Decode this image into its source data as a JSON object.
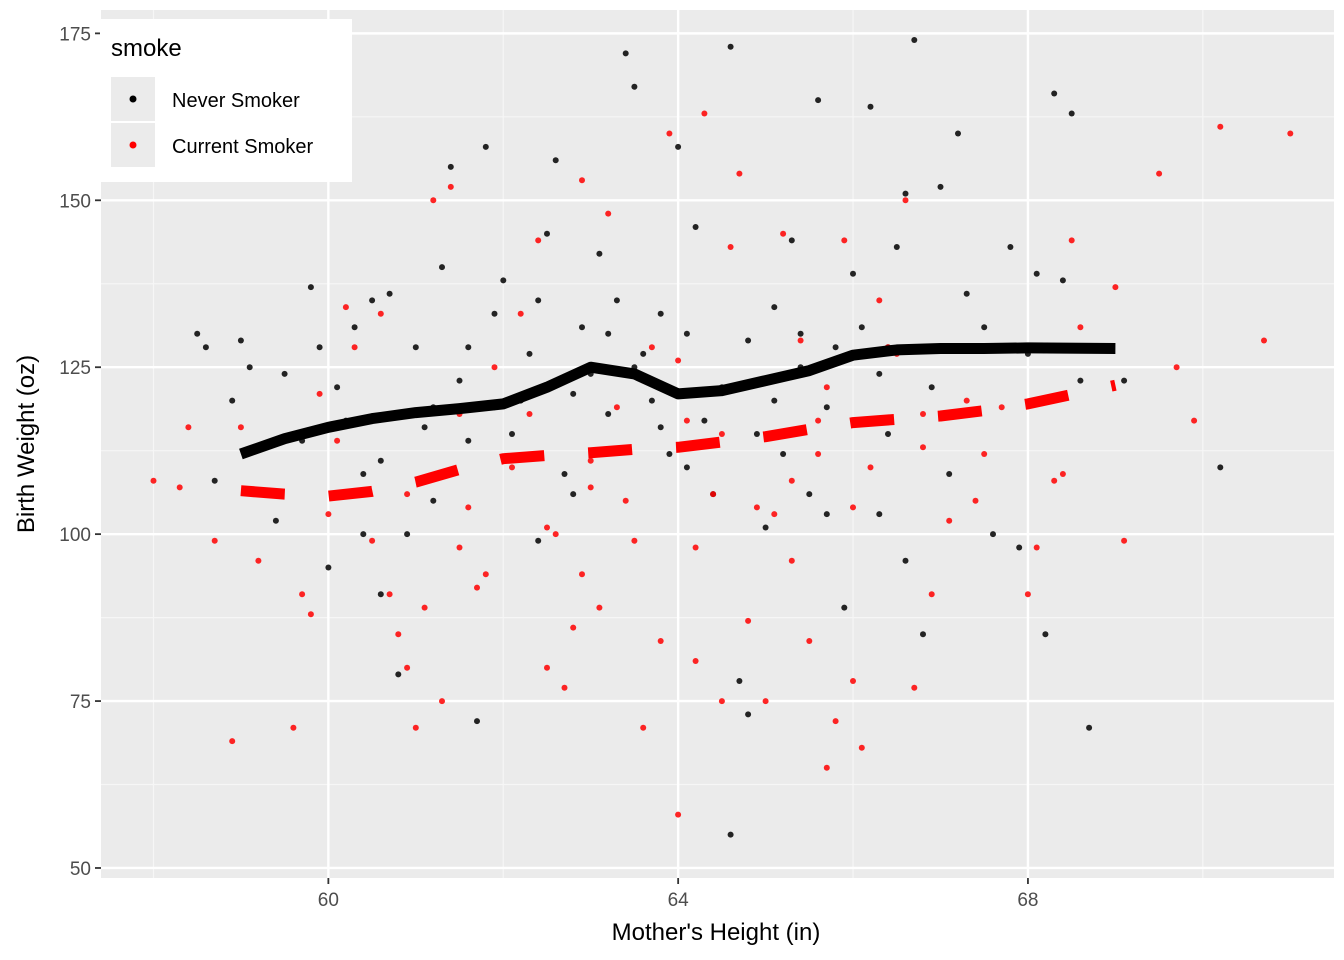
{
  "chart_data": {
    "type": "scatter",
    "xlabel": "Mother's Height (in)",
    "ylabel": "Birth Weight (oz)",
    "xlim": [
      57.4,
      71.5
    ],
    "ylim": [
      48.5,
      178.5
    ],
    "x_ticks": [
      60,
      64,
      68
    ],
    "y_ticks": [
      50,
      75,
      100,
      125,
      150,
      175
    ],
    "grid": true,
    "legend": {
      "title": "smoke",
      "placement": "top-left",
      "entries": [
        {
          "label": "Never Smoker",
          "color": "#000000"
        },
        {
          "label": "Current Smoker",
          "color": "#ff0000"
        }
      ]
    },
    "series": [
      {
        "name": "Never Smoker",
        "color": "#000000",
        "points": [
          [
            58.5,
            130
          ],
          [
            58.6,
            128
          ],
          [
            58.9,
            120
          ],
          [
            59.0,
            129
          ],
          [
            59.1,
            125
          ],
          [
            59.3,
            113
          ],
          [
            59.5,
            124
          ],
          [
            59.7,
            114
          ],
          [
            59.8,
            137
          ],
          [
            59.9,
            128
          ],
          [
            60.0,
            95
          ],
          [
            60.1,
            122
          ],
          [
            60.2,
            117
          ],
          [
            60.3,
            131
          ],
          [
            60.4,
            109
          ],
          [
            60.5,
            135
          ],
          [
            60.6,
            111
          ],
          [
            60.7,
            136
          ],
          [
            60.8,
            79
          ],
          [
            60.9,
            100
          ],
          [
            61.0,
            128
          ],
          [
            61.1,
            116
          ],
          [
            61.2,
            105
          ],
          [
            61.3,
            140
          ],
          [
            61.4,
            155
          ],
          [
            61.5,
            123
          ],
          [
            61.6,
            114
          ],
          [
            61.7,
            72
          ],
          [
            61.8,
            158
          ],
          [
            61.9,
            133
          ],
          [
            62.0,
            138
          ],
          [
            62.1,
            115
          ],
          [
            62.2,
            120
          ],
          [
            62.3,
            127
          ],
          [
            62.4,
            99
          ],
          [
            62.5,
            145
          ],
          [
            62.6,
            156
          ],
          [
            62.7,
            109
          ],
          [
            62.8,
            106
          ],
          [
            62.9,
            131
          ],
          [
            63.0,
            124
          ],
          [
            63.1,
            142
          ],
          [
            63.2,
            118
          ],
          [
            63.3,
            135
          ],
          [
            63.4,
            172
          ],
          [
            63.5,
            167
          ],
          [
            63.6,
            127
          ],
          [
            63.7,
            120
          ],
          [
            63.8,
            133
          ],
          [
            63.9,
            112
          ],
          [
            64.0,
            158
          ],
          [
            64.1,
            130
          ],
          [
            64.2,
            146
          ],
          [
            64.3,
            117
          ],
          [
            64.4,
            106
          ],
          [
            64.5,
            122
          ],
          [
            64.6,
            173
          ],
          [
            64.7,
            78
          ],
          [
            64.8,
            129
          ],
          [
            64.9,
            115
          ],
          [
            65.0,
            101
          ],
          [
            65.1,
            134
          ],
          [
            65.2,
            112
          ],
          [
            65.3,
            144
          ],
          [
            65.4,
            130
          ],
          [
            65.5,
            106
          ],
          [
            65.6,
            165
          ],
          [
            65.7,
            119
          ],
          [
            65.8,
            128
          ],
          [
            65.9,
            89
          ],
          [
            66.0,
            139
          ],
          [
            66.1,
            131
          ],
          [
            66.2,
            164
          ],
          [
            66.3,
            124
          ],
          [
            66.4,
            115
          ],
          [
            66.5,
            143
          ],
          [
            66.6,
            151
          ],
          [
            66.7,
            174
          ],
          [
            66.8,
            85
          ],
          [
            66.9,
            122
          ],
          [
            67.0,
            152
          ],
          [
            67.1,
            109
          ],
          [
            67.2,
            160
          ],
          [
            67.3,
            136
          ],
          [
            67.5,
            131
          ],
          [
            67.8,
            143
          ],
          [
            68.0,
            127
          ],
          [
            68.1,
            139
          ],
          [
            68.2,
            85
          ],
          [
            68.3,
            166
          ],
          [
            68.5,
            163
          ],
          [
            68.6,
            123
          ],
          [
            68.7,
            71
          ],
          [
            69.1,
            123
          ],
          [
            70.2,
            110
          ],
          [
            58.7,
            108
          ],
          [
            59.4,
            102
          ],
          [
            60.6,
            91
          ],
          [
            61.9,
            119
          ],
          [
            63.5,
            125
          ],
          [
            64.6,
            55
          ],
          [
            65.4,
            125
          ],
          [
            66.3,
            103
          ],
          [
            67.6,
            100
          ],
          [
            60.4,
            100
          ],
          [
            61.2,
            119
          ],
          [
            62.4,
            135
          ],
          [
            63.2,
            130
          ],
          [
            64.1,
            110
          ],
          [
            65.1,
            120
          ],
          [
            66.4,
            128
          ],
          [
            67.9,
            98
          ],
          [
            59.6,
            115
          ],
          [
            61.6,
            128
          ],
          [
            62.8,
            121
          ],
          [
            63.8,
            116
          ],
          [
            64.8,
            73
          ],
          [
            65.7,
            103
          ],
          [
            66.6,
            96
          ],
          [
            68.4,
            138
          ]
        ]
      },
      {
        "name": "Current Smoker",
        "color": "#ff0000",
        "points": [
          [
            58.0,
            108
          ],
          [
            58.3,
            107
          ],
          [
            58.4,
            116
          ],
          [
            58.7,
            99
          ],
          [
            58.9,
            69
          ],
          [
            59.0,
            116
          ],
          [
            59.2,
            96
          ],
          [
            59.6,
            71
          ],
          [
            59.7,
            91
          ],
          [
            59.8,
            88
          ],
          [
            60.0,
            103
          ],
          [
            60.2,
            134
          ],
          [
            60.3,
            128
          ],
          [
            60.5,
            99
          ],
          [
            60.6,
            133
          ],
          [
            60.7,
            91
          ],
          [
            60.8,
            85
          ],
          [
            60.9,
            80
          ],
          [
            61.0,
            71
          ],
          [
            61.1,
            89
          ],
          [
            61.2,
            150
          ],
          [
            61.3,
            75
          ],
          [
            61.4,
            152
          ],
          [
            61.5,
            98
          ],
          [
            61.6,
            104
          ],
          [
            61.7,
            92
          ],
          [
            61.8,
            94
          ],
          [
            61.9,
            125
          ],
          [
            62.1,
            110
          ],
          [
            62.3,
            118
          ],
          [
            62.4,
            144
          ],
          [
            62.5,
            80
          ],
          [
            62.6,
            100
          ],
          [
            62.7,
            77
          ],
          [
            62.8,
            86
          ],
          [
            62.9,
            153
          ],
          [
            63.0,
            107
          ],
          [
            63.1,
            89
          ],
          [
            63.2,
            148
          ],
          [
            63.3,
            119
          ],
          [
            63.4,
            105
          ],
          [
            63.5,
            99
          ],
          [
            63.6,
            71
          ],
          [
            63.7,
            128
          ],
          [
            63.8,
            84
          ],
          [
            63.9,
            160
          ],
          [
            64.0,
            126
          ],
          [
            64.1,
            117
          ],
          [
            64.2,
            81
          ],
          [
            64.3,
            163
          ],
          [
            64.4,
            106
          ],
          [
            64.5,
            75
          ],
          [
            64.6,
            143
          ],
          [
            64.7,
            154
          ],
          [
            64.8,
            87
          ],
          [
            64.9,
            104
          ],
          [
            65.0,
            75
          ],
          [
            65.1,
            103
          ],
          [
            65.2,
            145
          ],
          [
            65.3,
            96
          ],
          [
            65.4,
            129
          ],
          [
            65.5,
            84
          ],
          [
            65.6,
            117
          ],
          [
            65.7,
            65
          ],
          [
            65.8,
            72
          ],
          [
            65.9,
            144
          ],
          [
            66.0,
            78
          ],
          [
            66.1,
            68
          ],
          [
            66.2,
            110
          ],
          [
            66.3,
            135
          ],
          [
            66.4,
            128
          ],
          [
            66.5,
            127
          ],
          [
            66.6,
            150
          ],
          [
            66.7,
            77
          ],
          [
            66.8,
            118
          ],
          [
            66.9,
            91
          ],
          [
            67.1,
            102
          ],
          [
            67.3,
            120
          ],
          [
            67.5,
            112
          ],
          [
            67.7,
            119
          ],
          [
            68.0,
            91
          ],
          [
            68.1,
            98
          ],
          [
            68.3,
            108
          ],
          [
            68.4,
            109
          ],
          [
            68.5,
            144
          ],
          [
            69.0,
            137
          ],
          [
            69.1,
            99
          ],
          [
            69.5,
            154
          ],
          [
            69.7,
            125
          ],
          [
            69.9,
            117
          ],
          [
            70.2,
            161
          ],
          [
            70.7,
            129
          ],
          [
            71.0,
            160
          ],
          [
            64.0,
            58
          ],
          [
            65.7,
            122
          ],
          [
            62.5,
            101
          ],
          [
            60.1,
            114
          ],
          [
            61.5,
            118
          ],
          [
            63.0,
            111
          ],
          [
            64.5,
            115
          ],
          [
            66.0,
            104
          ],
          [
            67.4,
            105
          ],
          [
            59.9,
            121
          ],
          [
            62.2,
            133
          ],
          [
            63.6,
            123
          ],
          [
            65.3,
            108
          ],
          [
            66.8,
            113
          ],
          [
            68.6,
            131
          ],
          [
            60.9,
            106
          ],
          [
            62.9,
            94
          ],
          [
            64.2,
            98
          ],
          [
            65.6,
            112
          ]
        ]
      }
    ],
    "smooth_lines": [
      {
        "name": "Never Smoker",
        "style": "solid",
        "points": [
          [
            59,
            112
          ],
          [
            59.5,
            114.3
          ],
          [
            60,
            116
          ],
          [
            60.5,
            117.3
          ],
          [
            61,
            118.2
          ],
          [
            61.5,
            118.8
          ],
          [
            62,
            119.5
          ],
          [
            62.5,
            122
          ],
          [
            63,
            125
          ],
          [
            63.5,
            124
          ],
          [
            64,
            121
          ],
          [
            64.5,
            121.5
          ],
          [
            65,
            123
          ],
          [
            65.5,
            124.5
          ],
          [
            66,
            126.8
          ],
          [
            66.5,
            127.6
          ],
          [
            67,
            127.8
          ],
          [
            67.5,
            127.8
          ],
          [
            68,
            127.9
          ],
          [
            69,
            127.8
          ]
        ]
      },
      {
        "name": "Current Smoker",
        "style": "dashed",
        "points": [
          [
            59,
            106.5
          ],
          [
            59.5,
            106
          ],
          [
            60,
            105.7
          ],
          [
            60.5,
            106.4
          ],
          [
            61,
            107.8
          ],
          [
            61.5,
            109.7
          ],
          [
            62,
            111.3
          ],
          [
            62.5,
            111.8
          ],
          [
            63,
            112.2
          ],
          [
            63.5,
            112.7
          ],
          [
            64,
            113
          ],
          [
            64.5,
            113.8
          ],
          [
            65,
            114.6
          ],
          [
            65.5,
            115.7
          ],
          [
            66,
            116.7
          ],
          [
            66.5,
            117.2
          ],
          [
            67,
            117.7
          ],
          [
            67.5,
            118.5
          ],
          [
            68,
            119.5
          ],
          [
            69,
            122.3
          ]
        ]
      }
    ]
  }
}
